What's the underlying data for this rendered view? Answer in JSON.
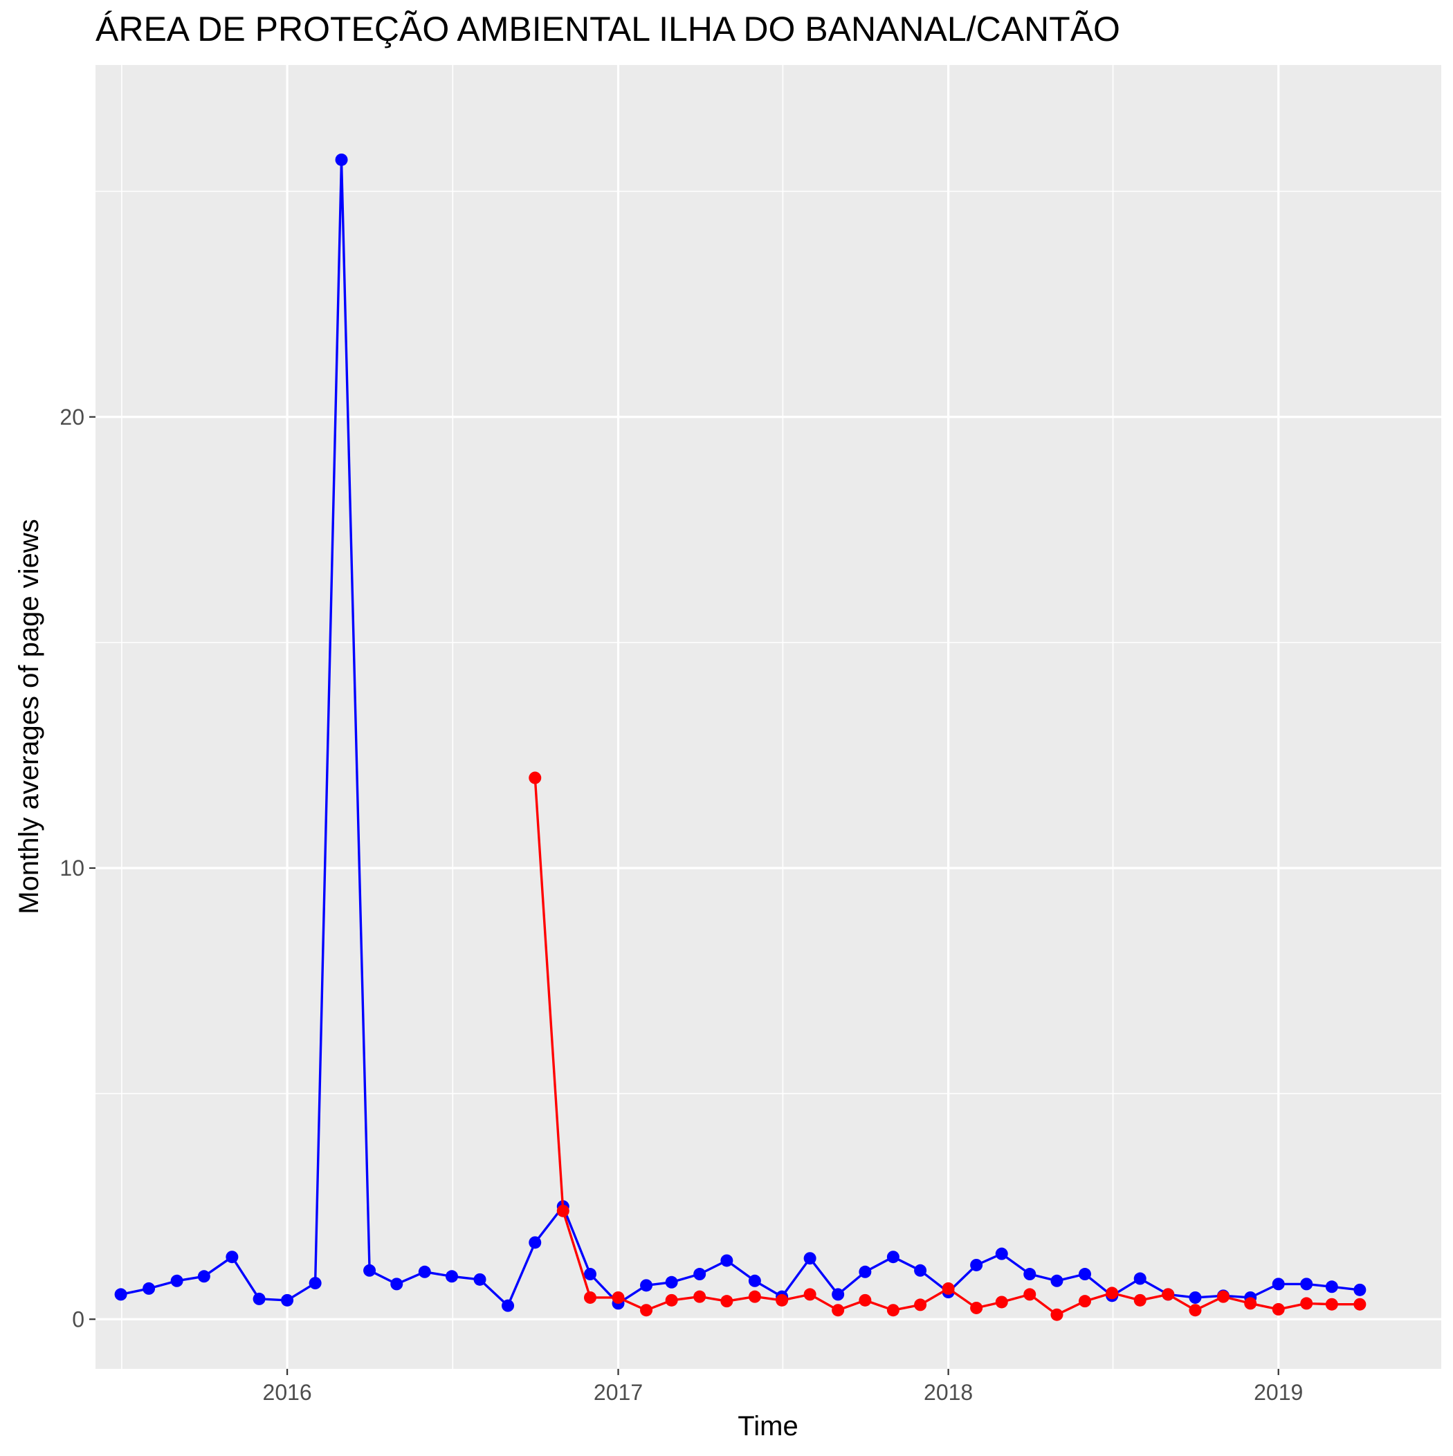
{
  "chart_data": {
    "type": "line",
    "title": "ÁREA DE PROTEÇÃO AMBIENTAL ILHA DO BANANAL/CANTÃO",
    "xlabel": "Time",
    "ylabel": "Monthly averages of page views",
    "xlim": [
      "2015-06-03",
      "2019-06-30"
    ],
    "ylim": [
      -1.1,
      27.8
    ],
    "x_ticks": [
      "2016",
      "2017",
      "2018",
      "2019"
    ],
    "y_ticks": [
      0,
      10,
      20
    ],
    "grid": true,
    "legend": "none",
    "series": [
      {
        "color": "#0000ff",
        "x": [
          "2015-07-01",
          "2015-08-01",
          "2015-09-01",
          "2015-10-01",
          "2015-11-01",
          "2015-12-01",
          "2016-01-01",
          "2016-02-01",
          "2016-03-01",
          "2016-04-01",
          "2016-05-01",
          "2016-06-01",
          "2016-07-01",
          "2016-08-01",
          "2016-09-01",
          "2016-10-01",
          "2016-11-01",
          "2016-12-01",
          "2017-01-01",
          "2017-02-01",
          "2017-03-01",
          "2017-04-01",
          "2017-05-01",
          "2017-06-01",
          "2017-07-01",
          "2017-08-01",
          "2017-09-01",
          "2017-10-01",
          "2017-11-01",
          "2017-12-01",
          "2018-01-01",
          "2018-02-01",
          "2018-03-01",
          "2018-04-01",
          "2018-05-01",
          "2018-06-01",
          "2018-07-01",
          "2018-08-01",
          "2018-09-01",
          "2018-10-01",
          "2018-11-01",
          "2018-12-01",
          "2019-01-01",
          "2019-02-01",
          "2019-03-01",
          "2019-04-01"
        ],
        "y": [
          0.55,
          0.68,
          0.85,
          0.95,
          1.38,
          0.45,
          0.42,
          0.8,
          25.7,
          1.08,
          0.78,
          1.05,
          0.95,
          0.88,
          0.3,
          1.7,
          2.5,
          1.0,
          0.35,
          0.75,
          0.82,
          1.0,
          1.3,
          0.85,
          0.5,
          1.35,
          0.55,
          1.05,
          1.38,
          1.08,
          0.6,
          1.2,
          1.45,
          1.0,
          0.85,
          1.0,
          0.52,
          0.9,
          0.55,
          0.48,
          0.52,
          0.48,
          0.78,
          0.78,
          0.72,
          0.65
        ]
      },
      {
        "color": "#ff0000",
        "x": [
          "2016-10-01",
          "2016-11-01",
          "2016-12-01",
          "2017-01-01",
          "2017-02-01",
          "2017-03-01",
          "2017-04-01",
          "2017-05-01",
          "2017-06-01",
          "2017-07-01",
          "2017-08-01",
          "2017-09-01",
          "2017-10-01",
          "2017-11-01",
          "2017-12-01",
          "2018-01-01",
          "2018-02-01",
          "2018-03-01",
          "2018-04-01",
          "2018-05-01",
          "2018-06-01",
          "2018-07-01",
          "2018-08-01",
          "2018-09-01",
          "2018-10-01",
          "2018-11-01",
          "2018-12-01",
          "2019-01-01",
          "2019-02-01",
          "2019-03-01",
          "2019-04-01"
        ],
        "y": [
          12.0,
          2.4,
          0.48,
          0.48,
          0.2,
          0.42,
          0.5,
          0.4,
          0.5,
          0.42,
          0.55,
          0.2,
          0.42,
          0.2,
          0.32,
          0.68,
          0.25,
          0.38,
          0.55,
          0.1,
          0.4,
          0.58,
          0.42,
          0.55,
          0.2,
          0.5,
          0.35,
          0.22,
          0.35,
          0.33,
          0.33
        ]
      }
    ]
  }
}
